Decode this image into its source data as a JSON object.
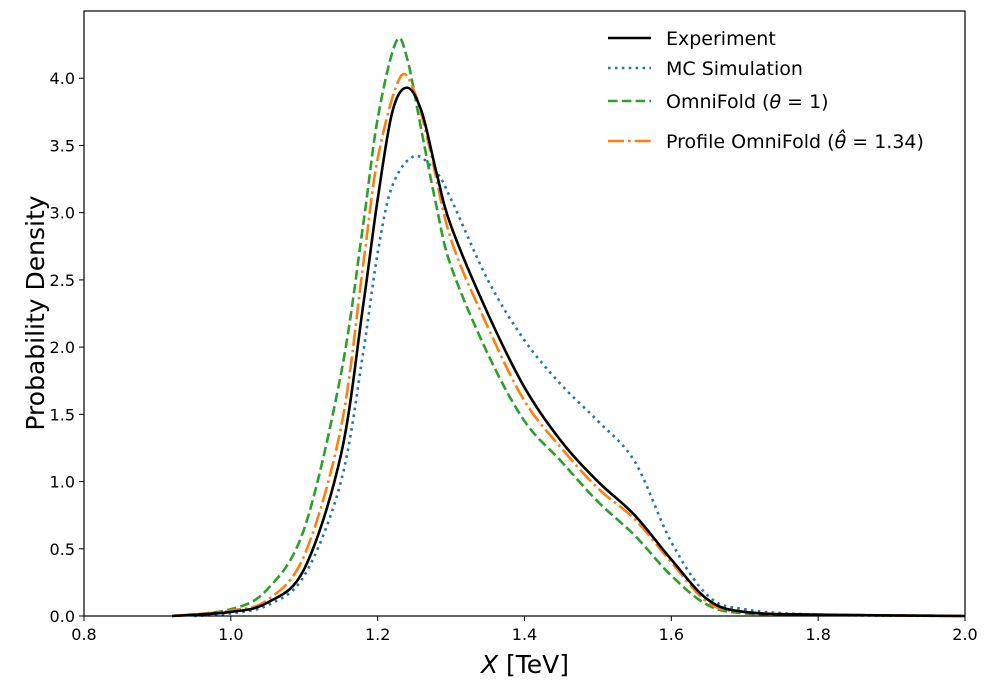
{
  "chart_data": {
    "type": "line",
    "title": "",
    "xlabel": "X [TeV]",
    "xlabel_var": "X",
    "xlabel_unit": " [TeV]",
    "ylabel": "Probability Density",
    "xlim": [
      0.8,
      2.0
    ],
    "ylim": [
      0.0,
      4.5
    ],
    "xticks": [
      "0.8",
      "1.0",
      "1.2",
      "1.4",
      "1.6",
      "1.8",
      "2.0"
    ],
    "yticks": [
      "0.0",
      "0.5",
      "1.0",
      "1.5",
      "2.0",
      "2.5",
      "3.0",
      "3.5",
      "4.0"
    ],
    "grid": false,
    "legend_position": "top-right",
    "series": [
      {
        "name": "Experiment",
        "color": "#000000",
        "style": "solid",
        "x": [
          0.92,
          1.0,
          1.05,
          1.1,
          1.15,
          1.18,
          1.2,
          1.22,
          1.24,
          1.26,
          1.28,
          1.3,
          1.35,
          1.4,
          1.45,
          1.5,
          1.55,
          1.6,
          1.65,
          1.7,
          1.8,
          2.0
        ],
        "y": [
          0.0,
          0.03,
          0.1,
          0.35,
          1.2,
          2.3,
          3.1,
          3.75,
          3.93,
          3.75,
          3.3,
          2.9,
          2.25,
          1.7,
          1.3,
          1.0,
          0.75,
          0.42,
          0.12,
          0.03,
          0.01,
          0.0
        ]
      },
      {
        "name": "MC Simulation",
        "color": "#1f77b4",
        "style": "dotted",
        "x": [
          0.95,
          1.0,
          1.05,
          1.1,
          1.15,
          1.18,
          1.2,
          1.22,
          1.25,
          1.28,
          1.3,
          1.35,
          1.4,
          1.45,
          1.5,
          1.55,
          1.6,
          1.65,
          1.7,
          1.8,
          2.0
        ],
        "y": [
          0.0,
          0.02,
          0.08,
          0.3,
          1.0,
          1.95,
          2.7,
          3.2,
          3.42,
          3.3,
          3.1,
          2.5,
          2.05,
          1.72,
          1.45,
          1.15,
          0.55,
          0.15,
          0.05,
          0.01,
          0.0
        ]
      },
      {
        "name": "OmniFold (θ = 1)",
        "label_main": "OmniFold (",
        "label_var": "θ",
        "label_rest": " = 1)",
        "color": "#2ca02c",
        "style": "dashed",
        "x": [
          0.92,
          1.0,
          1.05,
          1.1,
          1.15,
          1.18,
          1.2,
          1.225,
          1.24,
          1.26,
          1.28,
          1.3,
          1.35,
          1.4,
          1.45,
          1.5,
          1.55,
          1.6,
          1.65,
          1.7,
          1.8,
          2.0
        ],
        "y": [
          0.0,
          0.05,
          0.2,
          0.65,
          1.8,
          2.9,
          3.7,
          4.27,
          4.15,
          3.6,
          3.05,
          2.6,
          1.95,
          1.45,
          1.15,
          0.85,
          0.6,
          0.3,
          0.08,
          0.02,
          0.01,
          0.0
        ]
      },
      {
        "name": "Profile OmniFold (θ̂ = 1.34)",
        "label_main": "Profile OmniFold (",
        "label_var": "θ̂",
        "label_rest": " = 1.34)",
        "color": "#ff7f0e",
        "style": "dashdot",
        "x": [
          0.92,
          1.0,
          1.05,
          1.1,
          1.15,
          1.18,
          1.2,
          1.23,
          1.25,
          1.27,
          1.3,
          1.35,
          1.4,
          1.45,
          1.5,
          1.55,
          1.6,
          1.65,
          1.7,
          1.8,
          2.0
        ],
        "y": [
          0.0,
          0.04,
          0.12,
          0.45,
          1.4,
          2.6,
          3.4,
          4.0,
          3.9,
          3.5,
          2.8,
          2.15,
          1.6,
          1.25,
          0.95,
          0.72,
          0.4,
          0.1,
          0.03,
          0.01,
          0.0
        ]
      }
    ]
  }
}
